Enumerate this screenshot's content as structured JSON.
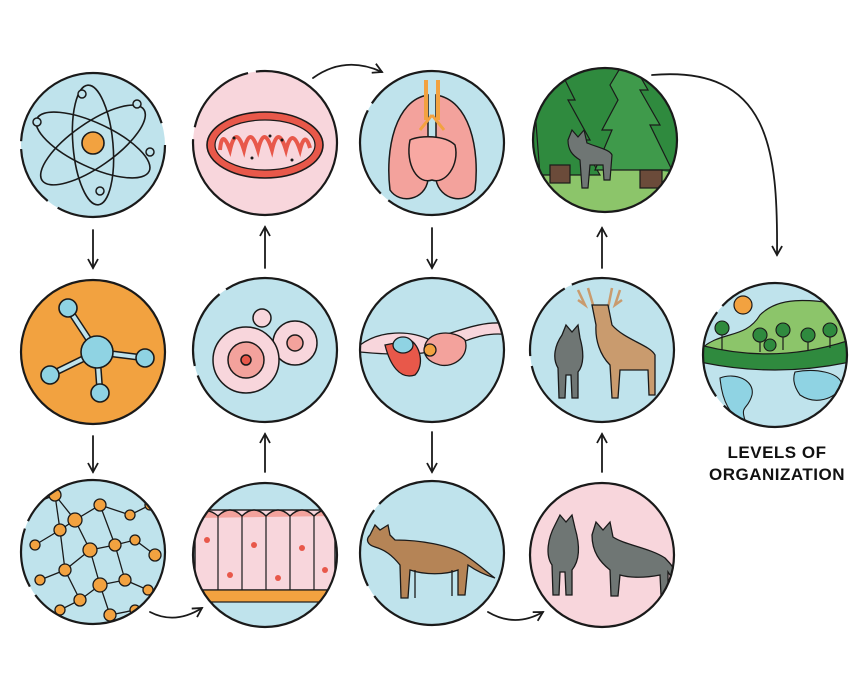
{
  "title": {
    "line1": "LEVELS OF",
    "line2": "ORGANIZATION"
  },
  "colors": {
    "outline": "#1a1a1a",
    "light_blue": "#bfe3ec",
    "pink": "#f8d6dc",
    "orange": "#f2a240",
    "red": "#e8584a",
    "salmon": "#f3a29c",
    "forest_green": "#2f8a3e",
    "grass_green": "#8cc56a",
    "wolf_gray": "#6f7674",
    "deer_tan": "#c99b6e",
    "coyote_brown": "#b58456"
  },
  "levels": [
    {
      "icon": "atom-icon"
    },
    {
      "icon": "molecule-icon"
    },
    {
      "icon": "macromolecule-icon"
    },
    {
      "icon": "tissue-icon"
    },
    {
      "icon": "cell-icon"
    },
    {
      "icon": "organelle-icon"
    },
    {
      "icon": "organ-icon"
    },
    {
      "icon": "organ-system-icon"
    },
    {
      "icon": "organism-icon"
    },
    {
      "icon": "population-icon"
    },
    {
      "icon": "community-icon"
    },
    {
      "icon": "ecosystem-icon"
    },
    {
      "icon": "biosphere-icon"
    }
  ]
}
